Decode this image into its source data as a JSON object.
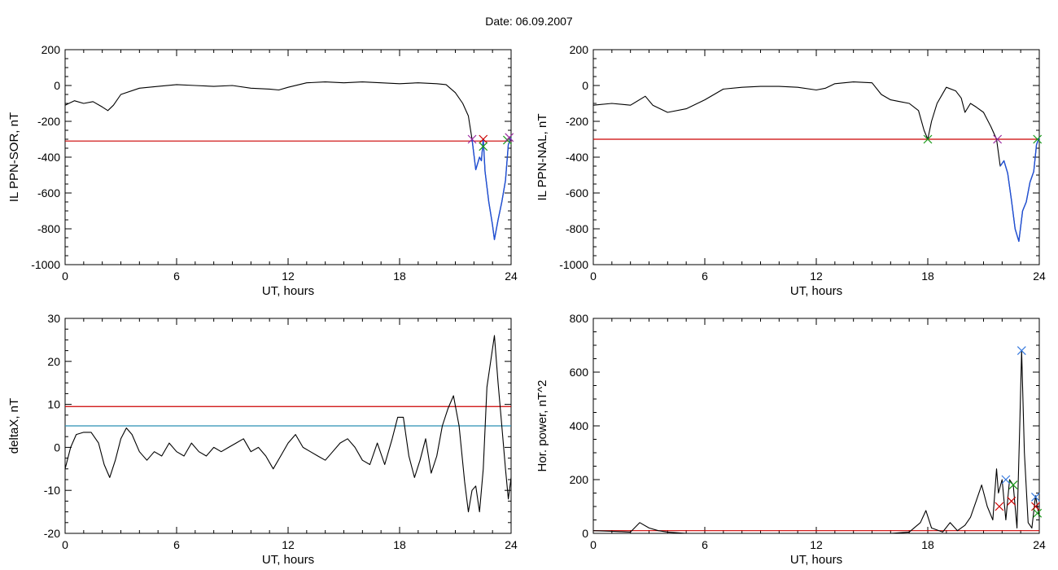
{
  "title": "Date:  06.09.2007",
  "colors": {
    "trace": "#000000",
    "threshold": "#cc0000",
    "secondary": "#2a8fb5",
    "highlight": "#1f4fd6",
    "marker_green": "#1a9a1a",
    "marker_magenta": "#9a2aa0",
    "marker_blue": "#3377dd"
  },
  "chart_data": [
    {
      "id": "sor",
      "type": "line",
      "xlabel": "UT, hours",
      "ylabel": "IL PPN-SOR, nT",
      "xlim": [
        0,
        24
      ],
      "ylim": [
        -1000,
        200
      ],
      "xticks": [
        0,
        6,
        12,
        18,
        24
      ],
      "yticks": [
        -1000,
        -800,
        -600,
        -400,
        -200,
        0,
        200
      ],
      "threshold": -310,
      "series": [
        {
          "values": [
            [
              0,
              -110
            ],
            [
              0.5,
              -85
            ],
            [
              1,
              -100
            ],
            [
              1.5,
              -90
            ],
            [
              2,
              -120
            ],
            [
              2.3,
              -140
            ],
            [
              2.6,
              -110
            ],
            [
              3,
              -50
            ],
            [
              4,
              -15
            ],
            [
              5,
              -5
            ],
            [
              6,
              5
            ],
            [
              7,
              0
            ],
            [
              8,
              -5
            ],
            [
              9,
              0
            ],
            [
              10,
              -15
            ],
            [
              11,
              -20
            ],
            [
              11.5,
              -25
            ],
            [
              12,
              -10
            ],
            [
              13,
              15
            ],
            [
              14,
              20
            ],
            [
              15,
              15
            ],
            [
              16,
              20
            ],
            [
              17,
              15
            ],
            [
              18,
              10
            ],
            [
              19,
              15
            ],
            [
              20,
              10
            ],
            [
              20.5,
              5
            ],
            [
              21,
              -40
            ],
            [
              21.4,
              -100
            ],
            [
              21.7,
              -170
            ],
            [
              21.9,
              -300
            ],
            [
              22.1,
              -470
            ],
            [
              22.3,
              -400
            ],
            [
              22.4,
              -420
            ],
            [
              22.5,
              -300
            ],
            [
              22.6,
              -480
            ],
            [
              22.8,
              -650
            ],
            [
              23.0,
              -780
            ],
            [
              23.1,
              -860
            ],
            [
              23.3,
              -750
            ],
            [
              23.5,
              -650
            ],
            [
              23.7,
              -530
            ],
            [
              23.85,
              -330
            ],
            [
              24,
              -290
            ]
          ]
        },
        {
          "color": "highlight",
          "values": [
            [
              21.9,
              -300
            ],
            [
              22.1,
              -470
            ],
            [
              22.3,
              -400
            ],
            [
              22.4,
              -420
            ],
            [
              22.5,
              -300
            ],
            [
              22.6,
              -480
            ],
            [
              22.8,
              -650
            ],
            [
              23.0,
              -780
            ],
            [
              23.1,
              -860
            ],
            [
              23.3,
              -750
            ],
            [
              23.5,
              -650
            ],
            [
              23.7,
              -530
            ],
            [
              23.85,
              -330
            ],
            [
              24,
              -290
            ]
          ]
        }
      ],
      "markers": [
        {
          "x": 21.9,
          "y": -300,
          "color": "marker_magenta"
        },
        {
          "x": 22.5,
          "y": -300,
          "color": "threshold"
        },
        {
          "x": 22.5,
          "y": -340,
          "color": "marker_green"
        },
        {
          "x": 23.8,
          "y": -305,
          "color": "marker_green"
        },
        {
          "x": 23.9,
          "y": -290,
          "color": "marker_magenta"
        }
      ]
    },
    {
      "id": "nal",
      "type": "line",
      "xlabel": "UT, hours",
      "ylabel": "IL PPN-NAL, nT",
      "xlim": [
        0,
        24
      ],
      "ylim": [
        -1000,
        200
      ],
      "xticks": [
        0,
        6,
        12,
        18,
        24
      ],
      "yticks": [
        -1000,
        -800,
        -600,
        -400,
        -200,
        0,
        200
      ],
      "threshold": -300,
      "series": [
        {
          "values": [
            [
              0,
              -110
            ],
            [
              1,
              -100
            ],
            [
              2,
              -110
            ],
            [
              2.8,
              -60
            ],
            [
              3.2,
              -110
            ],
            [
              4,
              -150
            ],
            [
              5,
              -130
            ],
            [
              6,
              -80
            ],
            [
              7,
              -20
            ],
            [
              8,
              -10
            ],
            [
              9,
              -5
            ],
            [
              10,
              -5
            ],
            [
              11,
              -10
            ],
            [
              12,
              -25
            ],
            [
              12.5,
              -15
            ],
            [
              13,
              10
            ],
            [
              14,
              20
            ],
            [
              15,
              15
            ],
            [
              15.5,
              -50
            ],
            [
              16,
              -80
            ],
            [
              16.5,
              -90
            ],
            [
              17,
              -100
            ],
            [
              17.5,
              -140
            ],
            [
              17.8,
              -250
            ],
            [
              18,
              -300
            ],
            [
              18.2,
              -200
            ],
            [
              18.5,
              -100
            ],
            [
              19,
              -10
            ],
            [
              19.5,
              -30
            ],
            [
              19.8,
              -70
            ],
            [
              20,
              -150
            ],
            [
              20.3,
              -100
            ],
            [
              20.6,
              -120
            ],
            [
              21,
              -150
            ],
            [
              21.4,
              -230
            ],
            [
              21.7,
              -300
            ],
            [
              21.9,
              -450
            ],
            [
              22.1,
              -420
            ],
            [
              22.3,
              -490
            ],
            [
              22.5,
              -640
            ],
            [
              22.7,
              -800
            ],
            [
              22.9,
              -870
            ],
            [
              23.1,
              -700
            ],
            [
              23.3,
              -650
            ],
            [
              23.5,
              -540
            ],
            [
              23.7,
              -480
            ],
            [
              23.85,
              -330
            ],
            [
              24,
              -290
            ]
          ]
        },
        {
          "color": "highlight",
          "values": [
            [
              21.9,
              -450
            ],
            [
              22.1,
              -420
            ],
            [
              22.3,
              -490
            ],
            [
              22.5,
              -640
            ],
            [
              22.7,
              -800
            ],
            [
              22.9,
              -870
            ],
            [
              23.1,
              -700
            ],
            [
              23.3,
              -650
            ],
            [
              23.5,
              -540
            ],
            [
              23.7,
              -480
            ],
            [
              23.85,
              -330
            ],
            [
              24,
              -290
            ]
          ]
        }
      ],
      "markers": [
        {
          "x": 18,
          "y": -300,
          "color": "marker_green"
        },
        {
          "x": 21.75,
          "y": -300,
          "color": "marker_magenta"
        },
        {
          "x": 23.9,
          "y": -300,
          "color": "marker_green"
        }
      ]
    },
    {
      "id": "deltax",
      "type": "line",
      "xlabel": "UT, hours",
      "ylabel": "deltaX, nT",
      "xlim": [
        0,
        24
      ],
      "ylim": [
        -20,
        30
      ],
      "xticks": [
        0,
        6,
        12,
        18,
        24
      ],
      "yticks": [
        -20,
        -10,
        0,
        10,
        20,
        30
      ],
      "threshold": 9.5,
      "threshold2": 5,
      "series": [
        {
          "values": [
            [
              0,
              -5
            ],
            [
              0.3,
              0
            ],
            [
              0.6,
              3
            ],
            [
              1.0,
              3.5
            ],
            [
              1.4,
              3.5
            ],
            [
              1.8,
              1
            ],
            [
              2.1,
              -4
            ],
            [
              2.4,
              -7
            ],
            [
              2.7,
              -3
            ],
            [
              3.0,
              2
            ],
            [
              3.3,
              4.5
            ],
            [
              3.6,
              3
            ],
            [
              4.0,
              -1
            ],
            [
              4.4,
              -3
            ],
            [
              4.8,
              -1
            ],
            [
              5.2,
              -2
            ],
            [
              5.6,
              1
            ],
            [
              6.0,
              -1
            ],
            [
              6.4,
              -2
            ],
            [
              6.8,
              1
            ],
            [
              7.2,
              -1
            ],
            [
              7.6,
              -2
            ],
            [
              8.0,
              0
            ],
            [
              8.4,
              -1
            ],
            [
              8.8,
              0
            ],
            [
              9.2,
              1
            ],
            [
              9.6,
              2
            ],
            [
              10.0,
              -1
            ],
            [
              10.4,
              0
            ],
            [
              10.8,
              -2
            ],
            [
              11.2,
              -5
            ],
            [
              11.6,
              -2
            ],
            [
              12.0,
              1
            ],
            [
              12.4,
              3
            ],
            [
              12.8,
              0
            ],
            [
              13.2,
              -1
            ],
            [
              13.6,
              -2
            ],
            [
              14.0,
              -3
            ],
            [
              14.4,
              -1
            ],
            [
              14.8,
              1
            ],
            [
              15.2,
              2
            ],
            [
              15.6,
              0
            ],
            [
              16.0,
              -3
            ],
            [
              16.4,
              -4
            ],
            [
              16.8,
              1
            ],
            [
              17.2,
              -4
            ],
            [
              17.6,
              2
            ],
            [
              17.9,
              7
            ],
            [
              18.2,
              7
            ],
            [
              18.5,
              -2
            ],
            [
              18.8,
              -7
            ],
            [
              19.1,
              -3
            ],
            [
              19.4,
              2
            ],
            [
              19.7,
              -6
            ],
            [
              20.0,
              -2
            ],
            [
              20.3,
              5
            ],
            [
              20.6,
              9
            ],
            [
              20.9,
              12
            ],
            [
              21.2,
              5
            ],
            [
              21.5,
              -8
            ],
            [
              21.7,
              -15
            ],
            [
              21.9,
              -10
            ],
            [
              22.1,
              -9
            ],
            [
              22.3,
              -15
            ],
            [
              22.5,
              -5
            ],
            [
              22.7,
              14
            ],
            [
              22.9,
              20
            ],
            [
              23.1,
              26
            ],
            [
              23.3,
              15
            ],
            [
              23.5,
              5
            ],
            [
              23.7,
              -5
            ],
            [
              23.85,
              -12
            ],
            [
              24,
              -7
            ]
          ]
        }
      ],
      "markers": []
    },
    {
      "id": "power",
      "type": "line",
      "xlabel": "UT, hours",
      "ylabel": "Hor. power, nT^2",
      "xlim": [
        0,
        24
      ],
      "ylim": [
        0,
        800
      ],
      "xticks": [
        0,
        6,
        12,
        18,
        24
      ],
      "yticks": [
        0,
        200,
        400,
        600,
        800
      ],
      "threshold": 10,
      "series": [
        {
          "values": [
            [
              0,
              10
            ],
            [
              1,
              8
            ],
            [
              2,
              5
            ],
            [
              2.5,
              40
            ],
            [
              3,
              20
            ],
            [
              3.5,
              10
            ],
            [
              4,
              5
            ],
            [
              5,
              0
            ],
            [
              6,
              -3
            ],
            [
              8,
              -5
            ],
            [
              10,
              -3
            ],
            [
              12,
              -5
            ],
            [
              14,
              -3
            ],
            [
              15,
              0
            ],
            [
              16,
              -2
            ],
            [
              17,
              5
            ],
            [
              17.6,
              40
            ],
            [
              17.9,
              85
            ],
            [
              18.2,
              20
            ],
            [
              18.8,
              5
            ],
            [
              19.2,
              40
            ],
            [
              19.6,
              10
            ],
            [
              20.0,
              30
            ],
            [
              20.3,
              60
            ],
            [
              20.6,
              120
            ],
            [
              20.9,
              180
            ],
            [
              21.2,
              100
            ],
            [
              21.5,
              50
            ],
            [
              21.7,
              240
            ],
            [
              21.8,
              150
            ],
            [
              22.0,
              200
            ],
            [
              22.2,
              50
            ],
            [
              22.4,
              200
            ],
            [
              22.6,
              180
            ],
            [
              22.8,
              20
            ],
            [
              22.95,
              400
            ],
            [
              23.05,
              680
            ],
            [
              23.2,
              300
            ],
            [
              23.4,
              40
            ],
            [
              23.6,
              20
            ],
            [
              23.8,
              140
            ],
            [
              24,
              60
            ]
          ]
        }
      ],
      "markers": [
        {
          "x": 21.85,
          "y": 100,
          "color": "threshold"
        },
        {
          "x": 22.2,
          "y": 200,
          "color": "marker_blue"
        },
        {
          "x": 22.5,
          "y": 120,
          "color": "threshold"
        },
        {
          "x": 22.6,
          "y": 180,
          "color": "marker_green"
        },
        {
          "x": 23.05,
          "y": 680,
          "color": "marker_blue"
        },
        {
          "x": 23.8,
          "y": 135,
          "color": "marker_blue"
        },
        {
          "x": 23.8,
          "y": 100,
          "color": "threshold"
        },
        {
          "x": 23.9,
          "y": 75,
          "color": "marker_green"
        }
      ]
    }
  ]
}
